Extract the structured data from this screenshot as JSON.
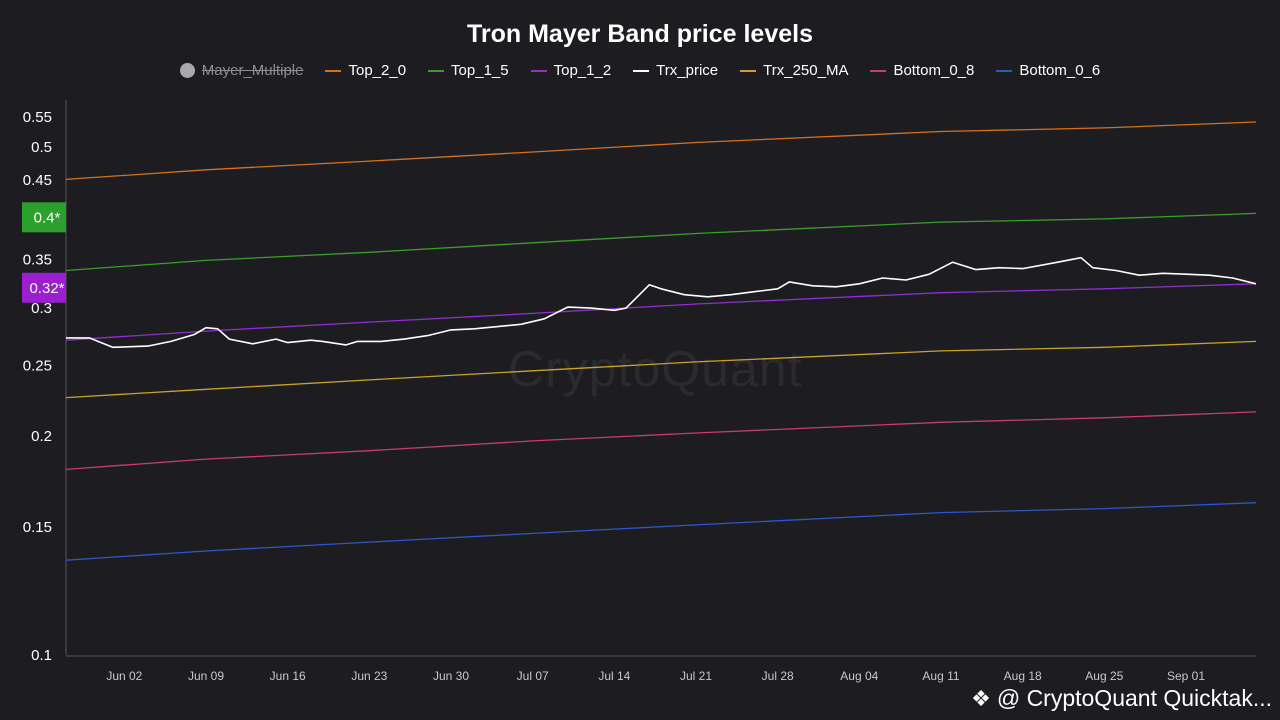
{
  "chart_data": {
    "type": "line",
    "title": "Tron Mayer Band price levels",
    "yscale": "log",
    "ylim": [
      0.1,
      0.58
    ],
    "y_ticks": [
      0.1,
      0.15,
      0.2,
      0.25,
      0.3,
      0.35,
      0.45,
      0.5,
      0.55
    ],
    "y_tick_labels": [
      "0.1",
      "0.15",
      "0.2",
      "0.25",
      "0.3",
      "0.35",
      "0.45",
      "0.5",
      "0.55"
    ],
    "x_start": "2024-05-28",
    "x_end": "2024-09-07",
    "x_ticks": [
      "2024-06-02",
      "2024-06-09",
      "2024-06-16",
      "2024-06-23",
      "2024-06-30",
      "2024-07-07",
      "2024-07-14",
      "2024-07-21",
      "2024-07-28",
      "2024-08-04",
      "2024-08-11",
      "2024-08-18",
      "2024-08-25",
      "2024-09-01"
    ],
    "x_tick_labels": [
      "Jun 02",
      "Jun 09",
      "Jun 16",
      "Jun 23",
      "Jun 30",
      "Jul 07",
      "Jul 14",
      "Jul 21",
      "Jul 28",
      "Aug 04",
      "Aug 11",
      "Aug 18",
      "Aug 25",
      "Sep 01"
    ],
    "highlight_labels": [
      {
        "text": "0.4*",
        "value": 0.4,
        "color": "#2ca02c"
      },
      {
        "text": "0.32*",
        "value": 0.32,
        "color": "#9b1fd1"
      }
    ],
    "series": [
      {
        "name": "Mayer_Multiple",
        "hidden": true,
        "color": "#a8a8ad",
        "x": [],
        "y": []
      },
      {
        "name": "Top_2_0",
        "color": "#d4711c",
        "x": [
          "2024-05-28",
          "2024-06-09",
          "2024-06-23",
          "2024-07-07",
          "2024-07-21",
          "2024-08-11",
          "2024-08-25",
          "2024-09-07"
        ],
        "y": [
          0.451,
          0.465,
          0.478,
          0.492,
          0.507,
          0.525,
          0.531,
          0.541
        ]
      },
      {
        "name": "Top_1_5",
        "color": "#3b9e2a",
        "x": [
          "2024-05-28",
          "2024-06-09",
          "2024-06-23",
          "2024-07-07",
          "2024-07-21",
          "2024-08-11",
          "2024-08-25",
          "2024-09-07"
        ],
        "y": [
          0.338,
          0.349,
          0.358,
          0.369,
          0.38,
          0.394,
          0.398,
          0.405
        ]
      },
      {
        "name": "Top_1_2",
        "color": "#8e2fd0",
        "x": [
          "2024-05-28",
          "2024-06-09",
          "2024-06-23",
          "2024-07-07",
          "2024-07-21",
          "2024-08-11",
          "2024-08-25",
          "2024-09-07"
        ],
        "y": [
          0.271,
          0.279,
          0.287,
          0.295,
          0.304,
          0.315,
          0.319,
          0.324
        ]
      },
      {
        "name": "Trx_price",
        "color": "#ffffff",
        "x": [
          "2024-05-28",
          "2024-05-30",
          "2024-06-01",
          "2024-06-04",
          "2024-06-06",
          "2024-06-08",
          "2024-06-09",
          "2024-06-10",
          "2024-06-11",
          "2024-06-13",
          "2024-06-15",
          "2024-06-16",
          "2024-06-18",
          "2024-06-19",
          "2024-06-21",
          "2024-06-22",
          "2024-06-24",
          "2024-06-26",
          "2024-06-28",
          "2024-06-30",
          "2024-07-02",
          "2024-07-04",
          "2024-07-06",
          "2024-07-08",
          "2024-07-10",
          "2024-07-12",
          "2024-07-14",
          "2024-07-15",
          "2024-07-17",
          "2024-07-18",
          "2024-07-20",
          "2024-07-22",
          "2024-07-24",
          "2024-07-26",
          "2024-07-28",
          "2024-07-29",
          "2024-07-31",
          "2024-08-02",
          "2024-08-04",
          "2024-08-06",
          "2024-08-08",
          "2024-08-10",
          "2024-08-12",
          "2024-08-14",
          "2024-08-16",
          "2024-08-18",
          "2024-08-21",
          "2024-08-23",
          "2024-08-24",
          "2024-08-26",
          "2024-08-28",
          "2024-08-30",
          "2024-09-01",
          "2024-09-03",
          "2024-09-05",
          "2024-09-07"
        ],
        "y": [
          0.273,
          0.273,
          0.265,
          0.266,
          0.27,
          0.276,
          0.282,
          0.281,
          0.272,
          0.268,
          0.272,
          0.269,
          0.271,
          0.27,
          0.267,
          0.27,
          0.27,
          0.272,
          0.275,
          0.28,
          0.281,
          0.283,
          0.285,
          0.29,
          0.301,
          0.3,
          0.298,
          0.3,
          0.323,
          0.319,
          0.313,
          0.311,
          0.313,
          0.316,
          0.319,
          0.326,
          0.322,
          0.321,
          0.324,
          0.33,
          0.328,
          0.334,
          0.347,
          0.339,
          0.341,
          0.34,
          0.347,
          0.352,
          0.341,
          0.338,
          0.333,
          0.335,
          0.334,
          0.333,
          0.33,
          0.324
        ]
      },
      {
        "name": "Trx_250_MA",
        "color": "#c9a227",
        "x": [
          "2024-05-28",
          "2024-06-09",
          "2024-06-23",
          "2024-07-07",
          "2024-07-21",
          "2024-08-11",
          "2024-08-25",
          "2024-09-07"
        ],
        "y": [
          0.226,
          0.232,
          0.239,
          0.246,
          0.253,
          0.262,
          0.265,
          0.27
        ]
      },
      {
        "name": "Bottom_0_8",
        "color": "#c43c74",
        "x": [
          "2024-05-28",
          "2024-06-09",
          "2024-06-23",
          "2024-07-07",
          "2024-07-21",
          "2024-08-11",
          "2024-08-25",
          "2024-09-07"
        ],
        "y": [
          0.18,
          0.186,
          0.191,
          0.197,
          0.202,
          0.209,
          0.212,
          0.216
        ]
      },
      {
        "name": "Bottom_0_6",
        "color": "#2f56c8",
        "x": [
          "2024-05-28",
          "2024-06-09",
          "2024-06-23",
          "2024-07-07",
          "2024-07-21",
          "2024-08-11",
          "2024-08-25",
          "2024-09-07"
        ],
        "y": [
          0.135,
          0.139,
          0.143,
          0.147,
          0.151,
          0.157,
          0.159,
          0.162
        ]
      }
    ]
  },
  "watermark": "CryptoQuant",
  "credit": {
    "icon": "binance-logo-icon",
    "text": "@ CryptoQuant Quicktak..."
  }
}
